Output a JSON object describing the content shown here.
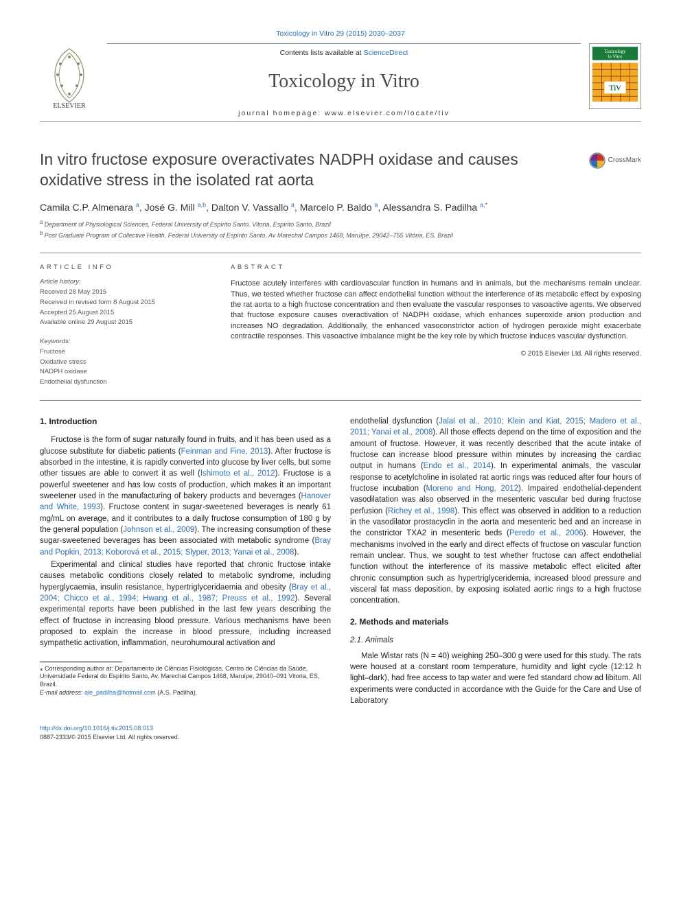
{
  "top_citation": "Toxicology in Vitro 29 (2015) 2030–2037",
  "header": {
    "contents_prefix": "Contents lists available at ",
    "sciencedirect": "ScienceDirect",
    "journal_title": "Toxicology in Vitro",
    "homepage_label": "journal homepage: ",
    "homepage_url": "www.elsevier.com/locate/tiv"
  },
  "cover": {
    "title_top": "Toxicology",
    "title_bottom": "in Vitro",
    "abbrev": "TiV",
    "bg_color": "#f5a623",
    "band_color": "#1a7a3a"
  },
  "crossmark_label": "CrossMark",
  "title": "In vitro fructose exposure overactivates NADPH oxidase and causes oxidative stress in the isolated rat aorta",
  "authors_html_parts": [
    {
      "name": "Camila C.P. Almenara",
      "sup": "a"
    },
    {
      "name": "José G. Mill",
      "sup": "a,b"
    },
    {
      "name": "Dalton V. Vassallo",
      "sup": "a"
    },
    {
      "name": "Marcelo P. Baldo",
      "sup": "a"
    },
    {
      "name": "Alessandra S. Padilha",
      "sup": "a,",
      "corr": true
    }
  ],
  "affiliations": [
    {
      "key": "a",
      "text": "Department of Physiological Sciences, Federal University of Espírito Santo, Vitoria, Espírito Santo, Brazil"
    },
    {
      "key": "b",
      "text": "Post Graduate Program of Collective Health, Federal University of Espírito Santo, Av Marechal Campos 1468, Maruípe, 29042–755 Vitória, ES, Brazil"
    }
  ],
  "article_info_heading": "article info",
  "history_heading": "Article history:",
  "history": [
    "Received 28 May 2015",
    "Received in revised form 8 August 2015",
    "Accepted 25 August 2015",
    "Available online 29 August 2015"
  ],
  "keywords_heading": "Keywords:",
  "keywords": [
    "Fructose",
    "Oxidative stress",
    "NADPH oxidase",
    "Endothelial dysfunction"
  ],
  "abstract_heading": "abstract",
  "abstract_text": "Fructose acutely interferes with cardiovascular function in humans and in animals, but the mechanisms remain unclear. Thus, we tested whether fructose can affect endothelial function without the interference of its metabolic effect by exposing the rat aorta to a high fructose concentration and then evaluate the vascular responses to vasoactive agents. We observed that fructose exposure causes overactivation of NADPH oxidase, which enhances superoxide anion production and increases NO degradation. Additionally, the enhanced vasoconstrictor action of hydrogen peroxide might exacerbate contractile responses. This vasoactive imbalance might be the key role by which fructose induces vascular dysfunction.",
  "abstract_copyright": "© 2015 Elsevier Ltd. All rights reserved.",
  "sections": {
    "intro_heading": "1. Introduction",
    "intro_p1_a": "Fructose is the form of sugar naturally found in fruits, and it has been used as a glucose substitute for diabetic patients (",
    "intro_p1_ref1": "Feinman and Fine, 2013",
    "intro_p1_b": "). After fructose is absorbed in the intestine, it is rapidly converted into glucose by liver cells, but some other tissues are able to convert it as well (",
    "intro_p1_ref2": "Ishimoto et al., 2012",
    "intro_p1_c": "). Fructose is a powerful sweetener and has low costs of production, which makes it an important sweetener used in the manufacturing of bakery products and beverages (",
    "intro_p1_ref3": "Hanover and White, 1993",
    "intro_p1_d": "). Fructose content in sugar-sweetened beverages is nearly 61 mg/mL on average, and it contributes to a daily fructose consumption of 180 g by the general population (",
    "intro_p1_ref4": "Johnson et al., 2009",
    "intro_p1_e": "). The increasing consumption of these sugar-sweetened beverages has been associated with metabolic syndrome (",
    "intro_p1_ref5": "Bray and Popkin, 2013; Koborová et al., 2015; Slyper, 2013; Yanai et al., 2008",
    "intro_p1_f": ").",
    "intro_p2_a": "Experimental and clinical studies have reported that chronic fructose intake causes metabolic conditions closely related to metabolic syndrome, including hyperglycaemia, insulin resistance, hypertriglyceridaemia and obesity (",
    "intro_p2_ref1": "Bray et al., 2004; Chicco et al., 1994; Hwang et al., 1987; Preuss et al., 1992",
    "intro_p2_b": "). Several experimental reports have been published in the last few years describing the effect of fructose in increasing blood pressure. Various mechanisms have been proposed to explain the increase in blood pressure, including increased sympathetic activation, inflammation, neurohumoural activation and",
    "col2_cont_a": "endothelial dysfunction (",
    "col2_cont_ref1": "Jalal et al., 2010; Klein and Kiat, 2015; Madero et al., 2011; Yanai et al., 2008",
    "col2_cont_b": "). All those effects depend on the time of exposition and the amount of fructose. However, it was recently described that the acute intake of fructose can increase blood pressure within minutes by increasing the cardiac output in humans (",
    "col2_cont_ref2": "Endo et al., 2014",
    "col2_cont_c": "). In experimental animals, the vascular response to acetylcholine in isolated rat aortic rings was reduced after four hours of fructose incubation (",
    "col2_cont_ref3": "Moreno and Hong, 2012",
    "col2_cont_d": "). Impaired endothelial-dependent vasodilatation was also observed in the mesenteric vascular bed during fructose perfusion (",
    "col2_cont_ref4": "Richey et al., 1998",
    "col2_cont_e": "). This effect was observed in addition to a reduction in the vasodilator prostacyclin in the aorta and mesenteric bed and an increase in the constrictor TXA2 in mesenteric beds (",
    "col2_cont_ref5": "Peredo et al., 2006",
    "col2_cont_f": "). However, the mechanisms involved in the early and direct effects of fructose on vascular function remain unclear. Thus, we sought to test whether fructose can affect endothelial function without the interference of its massive metabolic effect elicited after chronic consumption such as hypertriglyceridemia, increased blood pressure and visceral fat mass deposition, by exposing isolated aortic rings to a high fructose concentration.",
    "methods_heading": "2. Methods and materials",
    "animals_heading": "2.1. Animals",
    "animals_p": "Male Wistar rats (N = 40) weighing 250–300 g were used for this study. The rats were housed at a constant room temperature, humidity and light cycle (12:12 h light–dark), had free access to tap water and were fed standard chow ad libitum. All experiments were conducted in accordance with the Guide for the Care and Use of Laboratory"
  },
  "footnote": {
    "corr_label": "⁎ Corresponding author at: Departamento de Ciências Fisiológicas, Centro de Ciências da Saúde, Universidade Federal do Espírito Santo, Av. Marechal Campos 1468, Maruípe, 29040–091 Vitoria, ES, Brazil.",
    "email_label": "E-mail address: ",
    "email": "ale_padilha@hotmail.com",
    "email_person": " (A.S. Padilha)."
  },
  "bottom": {
    "doi": "http://dx.doi.org/10.1016/j.tiv.2015.08.013",
    "issn_line": "0887-2333/© 2015 Elsevier Ltd. All rights reserved."
  },
  "colors": {
    "link": "#2a6ebb",
    "text": "#333333",
    "rule": "#888888",
    "elsevier_orange": "#e67817"
  }
}
